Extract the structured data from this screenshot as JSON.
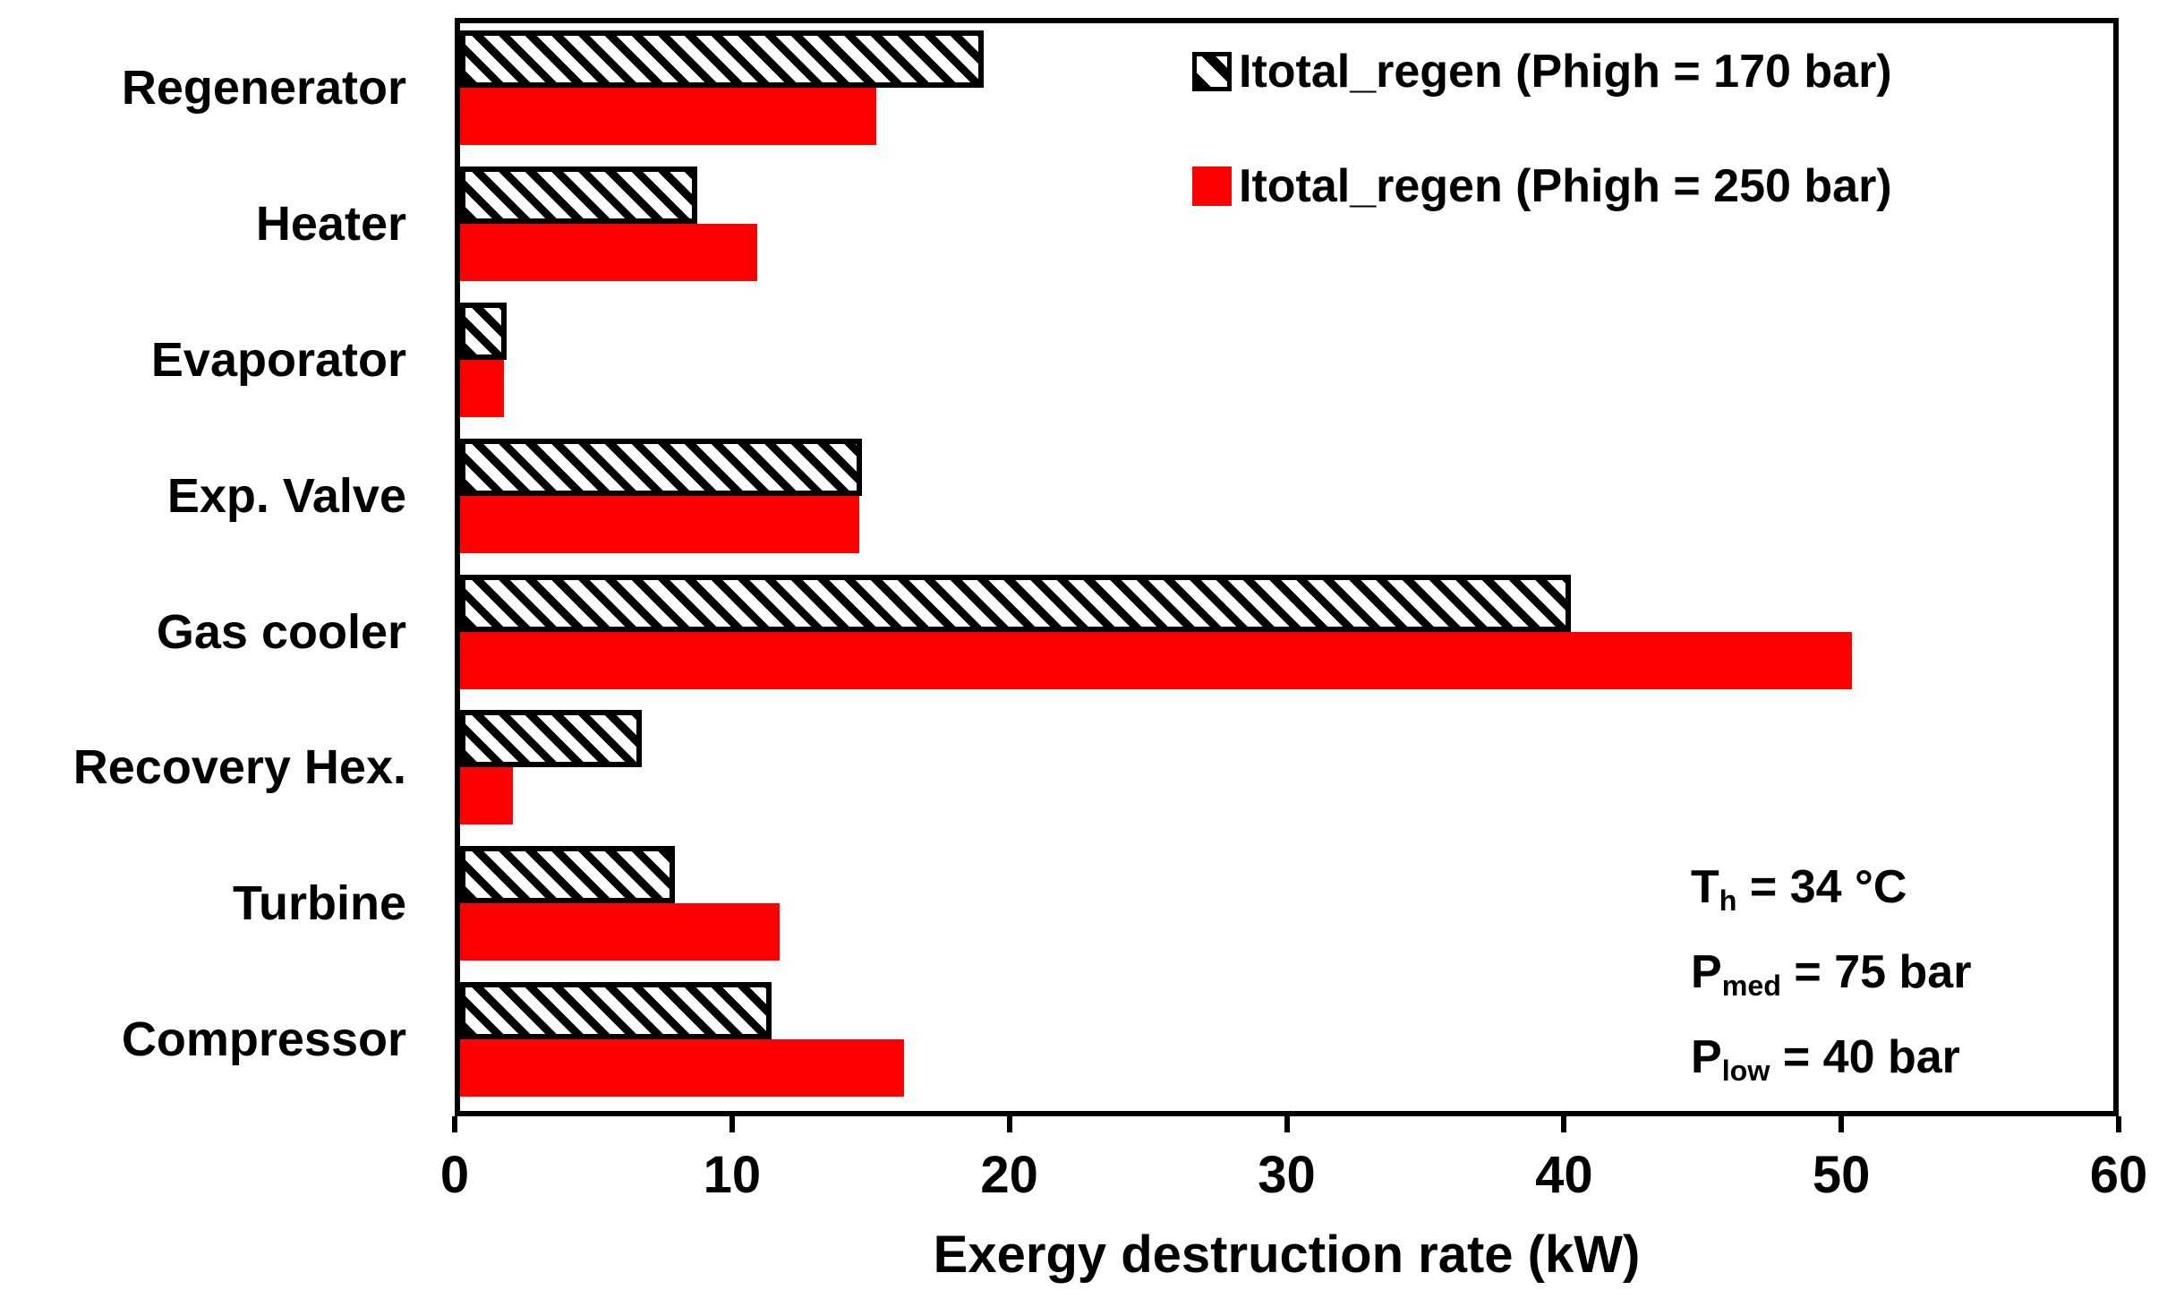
{
  "chart_data": {
    "type": "bar",
    "orientation": "horizontal",
    "xlabel": "Exergy destruction rate (kW)",
    "xlim": [
      0,
      60
    ],
    "xticks": [
      "0",
      "10",
      "20",
      "30",
      "40",
      "50",
      "60"
    ],
    "grid": false,
    "legend_position": "top-right-inside",
    "categories": [
      "Regenerator",
      "Heater",
      "Evaporator",
      "Exp. Valve",
      "Gas cooler",
      "Recovery Hex.",
      "Turbine",
      "Compressor"
    ],
    "series": [
      {
        "name": "Itotal_regen (Phigh = 170 bar)",
        "style": "hatched",
        "hatch": "backslash-diagonal",
        "color": "#000000",
        "values": [
          19.0,
          8.6,
          1.7,
          14.6,
          40.3,
          6.6,
          7.8,
          11.3
        ]
      },
      {
        "name": "Itotal_regen (Phigh = 250 bar)",
        "style": "solid",
        "color": "#ff0000",
        "values": [
          15.1,
          10.8,
          1.6,
          14.5,
          50.5,
          1.9,
          11.6,
          16.1
        ]
      }
    ]
  },
  "annotation": {
    "lines": [
      {
        "base": "T",
        "sub": "h",
        "rest": " = 34 °C"
      },
      {
        "base": "P",
        "sub": "med",
        "rest": " = 75 bar"
      },
      {
        "base": "P",
        "sub": "low",
        "rest": " = 40 bar"
      }
    ]
  },
  "colors": {
    "bar_red": "#ff0000",
    "hatch_black": "#000000",
    "frame": "#000000",
    "background": "#ffffff"
  }
}
